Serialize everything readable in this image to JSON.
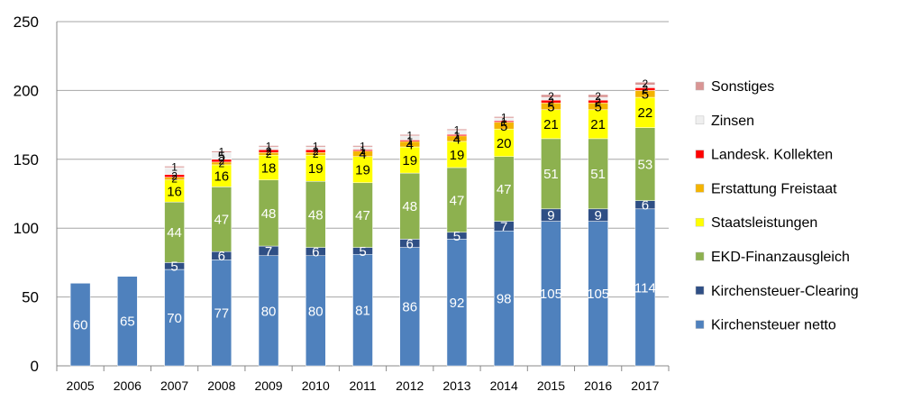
{
  "chart_data": {
    "type": "bar",
    "stacked": true,
    "title": "",
    "xlabel": "",
    "ylabel": "",
    "ylim": [
      0,
      250
    ],
    "yticks": [
      0,
      50,
      100,
      150,
      200,
      250
    ],
    "grid": true,
    "legend_position": "right",
    "categories": [
      "2005",
      "2006",
      "2007",
      "2008",
      "2009",
      "2010",
      "2011",
      "2012",
      "2013",
      "2014",
      "2015",
      "2016",
      "2017"
    ],
    "series": [
      {
        "name": "Kirchensteuer netto",
        "color": "#4f81bd",
        "label_color": "#ffffff",
        "values": [
          60,
          65,
          70,
          77,
          80,
          80,
          81,
          86,
          92,
          98,
          105,
          105,
          114
        ],
        "labels": [
          "60",
          "65",
          "70",
          "77",
          "80",
          "80",
          "81",
          "86",
          "92",
          "98",
          "105",
          "105",
          "114"
        ]
      },
      {
        "name": "Kirchensteuer-Clearing",
        "color": "#2f4f85",
        "label_color": "#ffffff",
        "values": [
          0,
          0,
          5,
          6,
          7,
          6,
          5,
          6,
          5,
          7,
          9,
          9,
          6
        ],
        "labels": [
          "",
          "",
          "5",
          "6",
          "7",
          "6",
          "5",
          "6",
          "5",
          "7",
          "9",
          "9",
          "6"
        ]
      },
      {
        "name": "EKD-Finanzausgleich",
        "color": "#8db14f",
        "label_color": "#ffffff",
        "values": [
          0,
          0,
          44,
          47,
          48,
          48,
          47,
          48,
          47,
          47,
          51,
          51,
          53
        ],
        "labels": [
          "",
          "",
          "44",
          "47",
          "48",
          "48",
          "47",
          "48",
          "47",
          "47",
          "51",
          "51",
          "53"
        ]
      },
      {
        "name": "Staatsleistungen",
        "color": "#ffff00",
        "label_color": "#000000",
        "values": [
          0,
          0,
          16,
          16,
          18,
          19,
          19,
          19,
          19,
          20,
          21,
          21,
          22
        ],
        "labels": [
          "",
          "",
          "16",
          "16",
          "18",
          "19",
          "19",
          "19",
          "19",
          "20",
          "21",
          "21",
          "22"
        ]
      },
      {
        "name": "Erstattung Freistaat",
        "color": "#f4b400",
        "label_color": "#000000",
        "values": [
          0,
          0,
          2,
          2,
          2,
          2,
          4,
          4,
          4,
          5,
          5,
          5,
          5
        ],
        "labels": [
          "",
          "",
          "2",
          "2",
          "2",
          "2",
          "4",
          "4",
          "4",
          "5",
          "5",
          "5",
          "5"
        ]
      },
      {
        "name": "Landesk. Kollekten",
        "color": "#ff0000",
        "label_color": "#000000",
        "values": [
          0,
          0,
          2,
          2,
          2,
          2,
          1,
          1,
          1,
          1,
          2,
          2,
          2
        ],
        "labels": [
          "",
          "",
          "2",
          "2",
          "2",
          "2",
          "1",
          "1",
          "1",
          "1",
          "2",
          "2",
          "2"
        ]
      },
      {
        "name": "Zinsen",
        "color": "#efefef",
        "label_color": "#000000",
        "values": [
          0,
          0,
          5,
          5,
          2,
          2,
          2,
          3,
          3,
          2,
          2,
          2,
          2
        ],
        "labels": [
          "",
          "",
          "",
          "5",
          "",
          "",
          "",
          "",
          "",
          "",
          "",
          "",
          ""
        ]
      },
      {
        "name": "Sonstiges",
        "color": "#d99594",
        "label_color": "#000000",
        "values": [
          0,
          0,
          1,
          1,
          1,
          1,
          1,
          1,
          1,
          1,
          2,
          2,
          2
        ],
        "labels": [
          "",
          "",
          "1",
          "1",
          "1",
          "1",
          "1",
          "1",
          "1",
          "1",
          "2",
          "2",
          "2"
        ]
      }
    ]
  }
}
